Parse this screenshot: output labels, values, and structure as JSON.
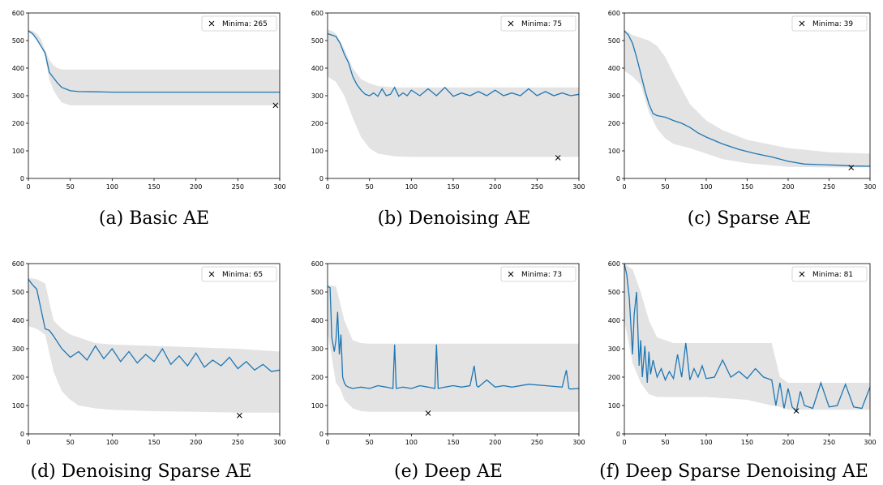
{
  "chart_data": [
    {
      "type": "line",
      "caption": "(a) Basic AE",
      "legend": {
        "label": "Minima: 265",
        "placement": "top-right"
      },
      "xlim": [
        0,
        300
      ],
      "ylim": [
        0,
        600
      ],
      "xticks": [
        0,
        50,
        100,
        150,
        200,
        250,
        300
      ],
      "yticks": [
        0,
        100,
        200,
        300,
        400,
        500,
        600
      ],
      "minima_marker": [
        295,
        265
      ],
      "series": [
        {
          "x": [
            0,
            5,
            10,
            15,
            20,
            25,
            30,
            35,
            40,
            50,
            60,
            80,
            100,
            150,
            200,
            250,
            300
          ],
          "y": [
            535,
            525,
            505,
            480,
            455,
            385,
            365,
            345,
            330,
            318,
            315,
            314,
            313,
            313,
            313,
            313,
            313
          ]
        }
      ],
      "band": {
        "x": [
          0,
          5,
          10,
          15,
          20,
          25,
          30,
          35,
          40,
          50,
          60,
          80,
          100,
          150,
          200,
          250,
          300
        ],
        "lower": [
          530,
          520,
          505,
          480,
          440,
          360,
          320,
          295,
          275,
          265,
          265,
          265,
          265,
          265,
          265,
          265,
          265
        ],
        "upper": [
          540,
          535,
          525,
          505,
          465,
          430,
          410,
          400,
          395,
          395,
          395,
          395,
          395,
          395,
          395,
          395,
          395
        ]
      }
    },
    {
      "type": "line",
      "caption": "(b) Denoising AE",
      "legend": {
        "label": "Minima: 75",
        "placement": "top-right"
      },
      "xlim": [
        0,
        300
      ],
      "ylim": [
        0,
        600
      ],
      "xticks": [
        0,
        50,
        100,
        150,
        200,
        250,
        300
      ],
      "yticks": [
        0,
        100,
        200,
        300,
        400,
        500,
        600
      ],
      "minima_marker": [
        275,
        75
      ],
      "series": [
        {
          "x": [
            0,
            5,
            10,
            15,
            20,
            25,
            30,
            35,
            40,
            45,
            50,
            55,
            60,
            65,
            70,
            75,
            80,
            85,
            90,
            95,
            100,
            110,
            120,
            130,
            140,
            150,
            160,
            170,
            180,
            190,
            200,
            210,
            220,
            230,
            240,
            250,
            260,
            270,
            280,
            290,
            300
          ],
          "y": [
            525,
            520,
            515,
            490,
            450,
            420,
            370,
            340,
            320,
            305,
            300,
            310,
            298,
            325,
            300,
            305,
            330,
            298,
            310,
            300,
            320,
            300,
            325,
            300,
            330,
            298,
            310,
            300,
            315,
            300,
            320,
            300,
            310,
            300,
            325,
            300,
            315,
            300,
            310,
            300,
            305
          ]
        }
      ],
      "band": {
        "x": [
          0,
          5,
          10,
          20,
          30,
          40,
          50,
          60,
          80,
          100,
          150,
          200,
          250,
          300
        ],
        "lower": [
          370,
          360,
          350,
          300,
          220,
          150,
          110,
          90,
          80,
          78,
          78,
          78,
          78,
          78
        ],
        "upper": [
          540,
          535,
          525,
          470,
          400,
          360,
          345,
          335,
          330,
          330,
          330,
          330,
          330,
          330
        ]
      }
    },
    {
      "type": "line",
      "caption": "(c) Sparse AE",
      "legend": {
        "label": "Minima: 39",
        "placement": "top-right"
      },
      "xlim": [
        0,
        300
      ],
      "ylim": [
        0,
        600
      ],
      "xticks": [
        0,
        50,
        100,
        150,
        200,
        250,
        300
      ],
      "yticks": [
        0,
        100,
        200,
        300,
        400,
        500,
        600
      ],
      "minima_marker": [
        277,
        39
      ],
      "series": [
        {
          "x": [
            0,
            5,
            10,
            15,
            20,
            25,
            30,
            35,
            40,
            50,
            60,
            70,
            80,
            90,
            100,
            120,
            140,
            160,
            180,
            200,
            220,
            240,
            260,
            280,
            300
          ],
          "y": [
            535,
            520,
            490,
            440,
            380,
            320,
            270,
            235,
            228,
            222,
            210,
            200,
            185,
            165,
            150,
            125,
            105,
            90,
            78,
            62,
            52,
            50,
            48,
            45,
            44
          ]
        }
      ],
      "band": {
        "x": [
          0,
          10,
          20,
          30,
          40,
          50,
          60,
          80,
          100,
          120,
          150,
          200,
          250,
          300
        ],
        "lower": [
          390,
          370,
          340,
          240,
          180,
          145,
          125,
          110,
          90,
          70,
          55,
          42,
          40,
          40
        ],
        "upper": [
          540,
          520,
          510,
          500,
          480,
          440,
          380,
          270,
          210,
          175,
          140,
          110,
          95,
          90
        ]
      }
    },
    {
      "type": "line",
      "caption": "(d) Denoising Sparse AE",
      "legend": {
        "label": "Minima: 65",
        "placement": "top-right"
      },
      "xlim": [
        0,
        300
      ],
      "ylim": [
        0,
        600
      ],
      "xticks": [
        0,
        50,
        100,
        150,
        200,
        250,
        300
      ],
      "yticks": [
        0,
        100,
        200,
        300,
        400,
        500,
        600
      ],
      "minima_marker": [
        252,
        65
      ],
      "series": [
        {
          "x": [
            0,
            5,
            10,
            15,
            20,
            25,
            30,
            40,
            50,
            60,
            70,
            80,
            90,
            100,
            110,
            120,
            130,
            140,
            150,
            160,
            170,
            180,
            190,
            200,
            210,
            220,
            230,
            240,
            250,
            260,
            270,
            280,
            290,
            300
          ],
          "y": [
            545,
            525,
            510,
            440,
            370,
            365,
            345,
            300,
            270,
            290,
            260,
            310,
            265,
            300,
            255,
            290,
            250,
            280,
            255,
            300,
            245,
            275,
            240,
            285,
            235,
            260,
            240,
            270,
            230,
            255,
            225,
            245,
            220,
            225
          ]
        }
      ],
      "band": {
        "x": [
          0,
          10,
          20,
          30,
          40,
          50,
          60,
          80,
          100,
          150,
          200,
          250,
          300
        ],
        "lower": [
          380,
          370,
          350,
          220,
          150,
          120,
          100,
          90,
          85,
          80,
          78,
          75,
          75
        ],
        "upper": [
          550,
          545,
          530,
          400,
          370,
          350,
          340,
          320,
          315,
          310,
          305,
          300,
          290
        ]
      }
    },
    {
      "type": "line",
      "caption": "(e) Deep AE",
      "legend": {
        "label": "Minima: 73",
        "placement": "top-right"
      },
      "xlim": [
        0,
        300
      ],
      "ylim": [
        0,
        600
      ],
      "xticks": [
        0,
        50,
        100,
        150,
        200,
        250,
        300
      ],
      "yticks": [
        0,
        100,
        200,
        300,
        400,
        500,
        600
      ],
      "minima_marker": [
        120,
        73
      ],
      "series": [
        {
          "x": [
            0,
            3,
            5,
            8,
            10,
            12,
            14,
            16,
            18,
            20,
            22,
            25,
            30,
            40,
            50,
            60,
            70,
            78,
            80,
            82,
            90,
            100,
            110,
            120,
            128,
            130,
            132,
            140,
            150,
            160,
            170,
            175,
            178,
            180,
            190,
            200,
            210,
            220,
            240,
            260,
            280,
            285,
            288,
            290,
            300
          ],
          "y": [
            520,
            515,
            340,
            290,
            330,
            430,
            280,
            350,
            200,
            180,
            170,
            165,
            160,
            165,
            160,
            170,
            165,
            160,
            315,
            160,
            165,
            160,
            170,
            165,
            160,
            315,
            160,
            165,
            170,
            165,
            170,
            240,
            170,
            165,
            190,
            165,
            170,
            165,
            175,
            170,
            165,
            225,
            160,
            158,
            160
          ]
        }
      ],
      "band": {
        "x": [
          0,
          10,
          15,
          20,
          30,
          40,
          50,
          100,
          150,
          200,
          250,
          300
        ],
        "lower": [
          360,
          180,
          160,
          120,
          90,
          80,
          78,
          78,
          78,
          78,
          78,
          78
        ],
        "upper": [
          525,
          520,
          460,
          400,
          330,
          320,
          318,
          318,
          318,
          318,
          318,
          318
        ]
      }
    },
    {
      "type": "line",
      "caption": "(f) Deep Sparse Denoising AE",
      "legend": {
        "label": "Minima: 81",
        "placement": "top-right"
      },
      "xlim": [
        0,
        300
      ],
      "ylim": [
        0,
        600
      ],
      "xticks": [
        0,
        50,
        100,
        150,
        200,
        250,
        300
      ],
      "yticks": [
        0,
        100,
        200,
        300,
        400,
        500,
        600
      ],
      "minima_marker": [
        210,
        81
      ],
      "series": [
        {
          "x": [
            0,
            3,
            6,
            10,
            12,
            15,
            18,
            20,
            22,
            25,
            28,
            30,
            32,
            35,
            40,
            45,
            50,
            55,
            60,
            65,
            70,
            75,
            80,
            85,
            90,
            95,
            100,
            110,
            120,
            130,
            140,
            150,
            160,
            170,
            180,
            185,
            190,
            195,
            200,
            205,
            210,
            215,
            220,
            230,
            240,
            250,
            260,
            270,
            280,
            290,
            300
          ],
          "y": [
            600,
            560,
            480,
            280,
            420,
            500,
            240,
            330,
            200,
            310,
            180,
            290,
            210,
            260,
            200,
            230,
            190,
            220,
            195,
            280,
            200,
            320,
            190,
            230,
            200,
            240,
            195,
            200,
            260,
            200,
            220,
            195,
            230,
            200,
            190,
            100,
            180,
            90,
            160,
            95,
            80,
            150,
            100,
            90,
            180,
            95,
            100,
            175,
            95,
            90,
            165
          ]
        }
      ],
      "band": {
        "x": [
          0,
          10,
          20,
          30,
          40,
          60,
          80,
          100,
          150,
          180,
          190,
          200,
          250,
          300
        ],
        "lower": [
          400,
          250,
          180,
          140,
          130,
          130,
          130,
          130,
          120,
          100,
          95,
          85,
          85,
          85
        ],
        "upper": [
          600,
          580,
          500,
          400,
          340,
          320,
          320,
          320,
          320,
          320,
          200,
          180,
          180,
          180
        ]
      }
    }
  ]
}
